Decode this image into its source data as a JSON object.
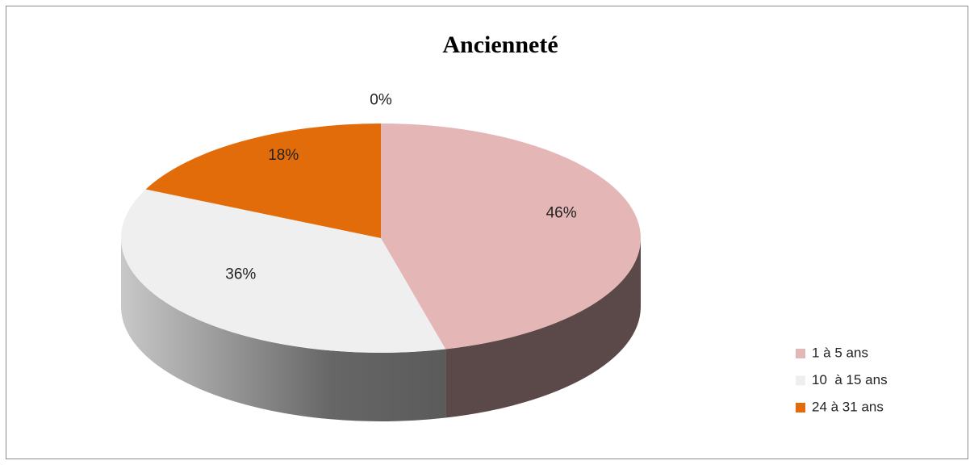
{
  "chart_data": {
    "type": "pie",
    "title": "Ancienneté",
    "categories": [
      "1 à 5 ans",
      "10  à 15 ans",
      "24 à 31 ans",
      null
    ],
    "values": [
      46,
      36,
      18,
      0
    ],
    "value_labels": [
      "46%",
      "36%",
      "18%",
      "0%"
    ],
    "colors": [
      "#e4b6b6",
      "#efefef",
      "#e26b0a",
      null
    ],
    "legend": "right"
  }
}
